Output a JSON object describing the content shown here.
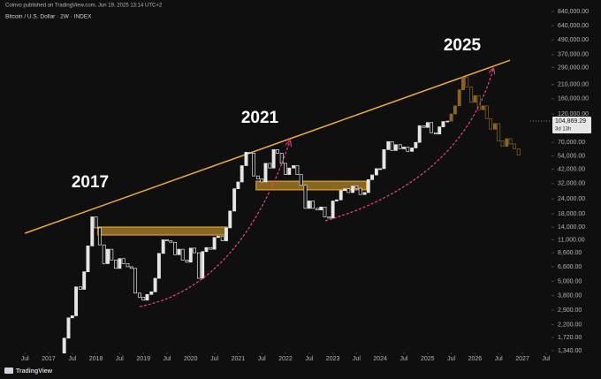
{
  "header": {
    "publisher": "Coinvo published on TradingView.com, Jun 19, 2025 13:14 UTC+2",
    "symbol": "Bitcoin / U.S. Dollar · 2W · INDEX",
    "logo": "TradingView"
  },
  "chart_data": {
    "type": "candlestick",
    "log_scale": true,
    "grid": false,
    "annotations": [
      "2017",
      "2021",
      "2025"
    ],
    "xlim": [
      2015.974,
      2027.541
    ],
    "xticks": [
      {
        "value": 2016.5,
        "label": "Jul"
      },
      2017,
      {
        "value": 2017.5,
        "label": "Jul"
      },
      2018,
      {
        "value": 2018.5,
        "label": "Jul"
      },
      2019,
      {
        "value": 2019.5,
        "label": "Jul"
      },
      2020,
      {
        "value": 2020.5,
        "label": "Jul"
      },
      2021,
      {
        "value": 2021.5,
        "label": "Jul"
      },
      2022,
      {
        "value": 2022.5,
        "label": "Jul"
      },
      2023,
      {
        "value": 2023.5,
        "label": "Jul"
      },
      2024,
      {
        "value": 2024.5,
        "label": "Jul"
      },
      2025,
      {
        "value": 2025.5,
        "label": "Jul"
      },
      2026,
      {
        "value": 2026.5,
        "label": "Jul"
      },
      2027,
      {
        "value": 2027.5,
        "label": "Jul"
      }
    ],
    "ylim": [
      1077,
      1045000
    ],
    "yticks": [
      {
        "value": 1340,
        "label": "1,340.00"
      },
      {
        "value": 1720,
        "label": "1,720.00"
      },
      {
        "value": 2200,
        "label": "2,200.00"
      },
      {
        "value": 2900,
        "label": "2,900.00"
      },
      {
        "value": 3800,
        "label": "3,800.00"
      },
      {
        "value": 5000,
        "label": "5,000.00"
      },
      {
        "value": 6600,
        "label": "6,600.00"
      },
      {
        "value": 8600,
        "label": "8,600.00"
      },
      {
        "value": 11000,
        "label": "11,000.00"
      },
      {
        "value": 14000,
        "label": "14,000.00"
      },
      {
        "value": 18000,
        "label": "18,000.00"
      },
      {
        "value": 24000,
        "label": "24,000.00"
      },
      {
        "value": 32000,
        "label": "32,000.00"
      },
      {
        "value": 42000,
        "label": "42,000.00"
      },
      {
        "value": 54000,
        "label": "54,000.00"
      },
      {
        "value": 70000,
        "label": "70,000.00"
      },
      {
        "value": 120000,
        "label": "120,000.00"
      },
      {
        "value": 160000,
        "label": "160,000.00"
      },
      {
        "value": 210000,
        "label": "210,000.00"
      },
      {
        "value": 290000,
        "label": "290,000.00"
      },
      {
        "value": 370000,
        "label": "370,000.00"
      },
      {
        "value": 490000,
        "label": "490,000.00"
      },
      {
        "value": 640000,
        "label": "640,000.00"
      },
      {
        "value": 840000,
        "label": "840,000.00"
      }
    ],
    "price_label": {
      "value": 104869.29,
      "label": "104,869.29"
    },
    "countdown": "3d 13h",
    "trendline": {
      "color": "#f2a93b",
      "x": [
        2016.5,
        2026.74
      ],
      "y": [
        12470,
        333000
      ]
    },
    "zones": [
      {
        "color": "#f0b030",
        "x": [
          2018.04,
          2020.77
        ],
        "y": [
          12050,
          14030
        ]
      },
      {
        "color": "#f0b030",
        "x": [
          2021.38,
          2023.71
        ],
        "y": [
          28400,
          33500
        ]
      }
    ],
    "series": [
      {
        "color": "#e6e6e6",
        "x": [
          2017.25,
          2017.33,
          2017.42,
          2017.5,
          2017.58,
          2017.67,
          2017.75,
          2017.83,
          2017.92,
          2018.0,
          2018.08,
          2018.17,
          2018.25,
          2018.33,
          2018.42,
          2018.5,
          2018.58,
          2018.67,
          2018.75,
          2018.83,
          2018.92,
          2019.0,
          2019.08,
          2019.17,
          2019.25,
          2019.33,
          2019.42,
          2019.5,
          2019.58,
          2019.67,
          2019.75,
          2019.83,
          2019.92,
          2020.0,
          2020.08,
          2020.17,
          2020.25,
          2020.33,
          2020.42,
          2020.5,
          2020.58,
          2020.67,
          2020.75,
          2020.83,
          2020.92,
          2021.0,
          2021.08,
          2021.17,
          2021.25,
          2021.33,
          2021.42,
          2021.5,
          2021.58,
          2021.67,
          2021.75,
          2021.83,
          2021.92,
          2022.0,
          2022.08,
          2022.17,
          2022.25,
          2022.33,
          2022.42,
          2022.5,
          2022.58,
          2022.67,
          2022.75,
          2022.83,
          2022.92,
          2023.0,
          2023.08,
          2023.17,
          2023.25,
          2023.33,
          2023.42,
          2023.5,
          2023.58,
          2023.67,
          2023.75,
          2023.83,
          2023.92,
          2024.0,
          2024.08,
          2024.17,
          2024.25,
          2024.33,
          2024.42,
          2024.5,
          2024.58,
          2024.67,
          2024.75,
          2024.83,
          2024.92,
          2025.0,
          2025.08,
          2025.17,
          2025.25,
          2025.33,
          2025.42
        ],
        "values": [
          1250,
          1700,
          2500,
          2600,
          4500,
          4300,
          6000,
          9800,
          17000,
          13800,
          10000,
          7000,
          9200,
          7500,
          6400,
          7700,
          7000,
          6600,
          6400,
          4000,
          3700,
          3500,
          3900,
          4100,
          5300,
          8500,
          11000,
          10800,
          10500,
          8300,
          9200,
          7500,
          7200,
          9400,
          8600,
          5300,
          8800,
          9500,
          9200,
          11500,
          11800,
          10800,
          13800,
          19000,
          29000,
          33000,
          45000,
          58000,
          57000,
          37000,
          35000,
          33000,
          47000,
          43000,
          61000,
          57000,
          47000,
          38000,
          43000,
          45000,
          38000,
          31000,
          20000,
          23000,
          20000,
          19400,
          20500,
          17000,
          16600,
          23000,
          23500,
          28000,
          29000,
          27000,
          30500,
          29300,
          26000,
          27000,
          34500,
          37700,
          42500,
          42500,
          61000,
          71000,
          60000,
          67000,
          62000,
          64000,
          59000,
          63000,
          70000,
          96000,
          93000,
          102000,
          84000,
          82000,
          94000,
          104000,
          104869
        ]
      },
      {
        "color": "#8a6424",
        "x": [
          2025.5,
          2025.58,
          2025.67,
          2025.75,
          2025.83,
          2025.92,
          2026.0,
          2026.08,
          2026.17,
          2026.25,
          2026.33,
          2026.42,
          2026.5,
          2026.58,
          2026.67,
          2026.75,
          2026.83,
          2026.92
        ],
        "values": [
          120000,
          140000,
          190000,
          240000,
          200000,
          150000,
          170000,
          130000,
          140000,
          110000,
          90000,
          100000,
          72000,
          65000,
          75000,
          68000,
          62000,
          55000
        ]
      }
    ]
  }
}
